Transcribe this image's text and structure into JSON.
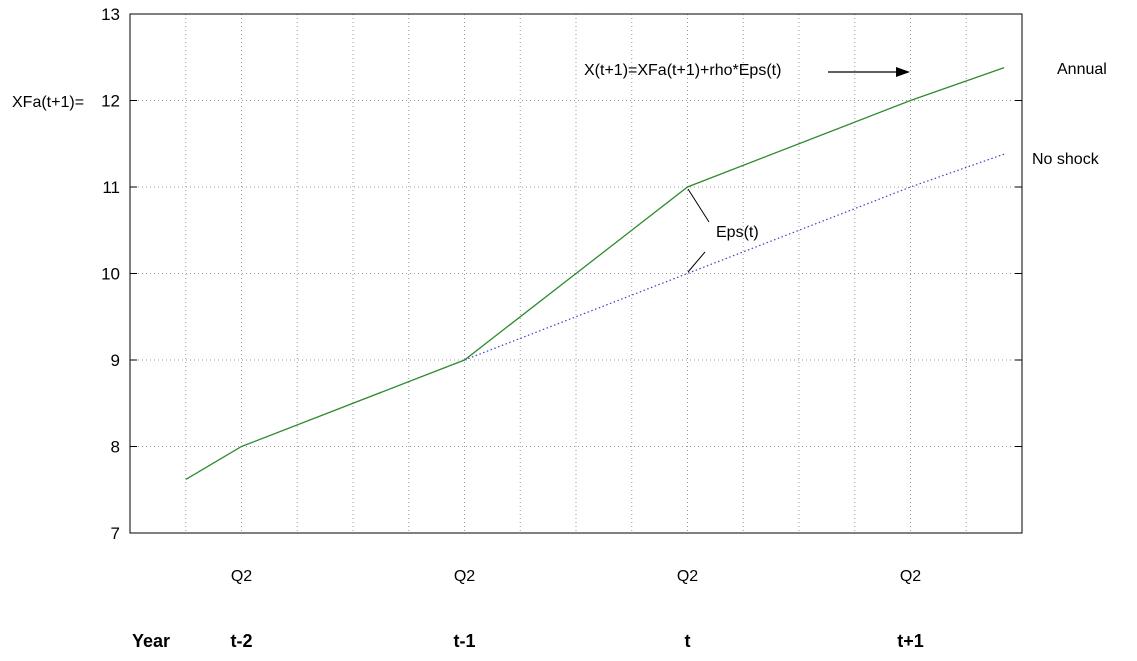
{
  "chart_data": {
    "type": "line",
    "x": [
      -1.5,
      -1.25,
      -1,
      -0.75,
      -0.5,
      -0.25,
      0,
      0.25,
      0.5,
      0.75,
      1,
      1.25,
      1.5,
      1.75,
      2,
      2.25
    ],
    "xlim": [
      -1.5,
      2.5
    ],
    "ylim": [
      7,
      13
    ],
    "yticks": [
      7,
      8,
      9,
      10,
      11,
      12,
      13
    ],
    "grid": true,
    "series": [
      {
        "name": "Annual",
        "color": "#2e8b2e",
        "style": "solid",
        "points": [
          [
            -1.25,
            7.62
          ],
          [
            -1,
            8
          ],
          [
            0,
            9
          ],
          [
            0.5,
            10
          ],
          [
            1,
            11
          ],
          [
            2,
            12
          ],
          [
            2.42,
            12.38
          ]
        ]
      },
      {
        "name": "No shock",
        "color": "#4040c0",
        "style": "dotted",
        "points": [
          [
            0,
            9
          ],
          [
            1,
            10
          ],
          [
            2,
            11
          ],
          [
            2.42,
            11.38
          ]
        ]
      }
    ],
    "quarter_labels": [
      {
        "x": -1,
        "text": "Q2"
      },
      {
        "x": 0,
        "text": "Q2"
      },
      {
        "x": 1,
        "text": "Q2"
      },
      {
        "x": 2,
        "text": "Q2"
      }
    ],
    "year_row_label": "Year",
    "year_labels": [
      {
        "x": -1,
        "text": "t-2"
      },
      {
        "x": 0,
        "text": "t-1"
      },
      {
        "x": 1,
        "text": "t"
      },
      {
        "x": 2,
        "text": "t+1"
      }
    ],
    "annotations": {
      "formula": "X(t+1)=XFa(t+1)+rho*Eps(t)",
      "xfa_label": "XFa(t+1)=",
      "eps_label": "Eps(t)",
      "annual_label": "Annual",
      "noshock_label": "No shock"
    }
  }
}
